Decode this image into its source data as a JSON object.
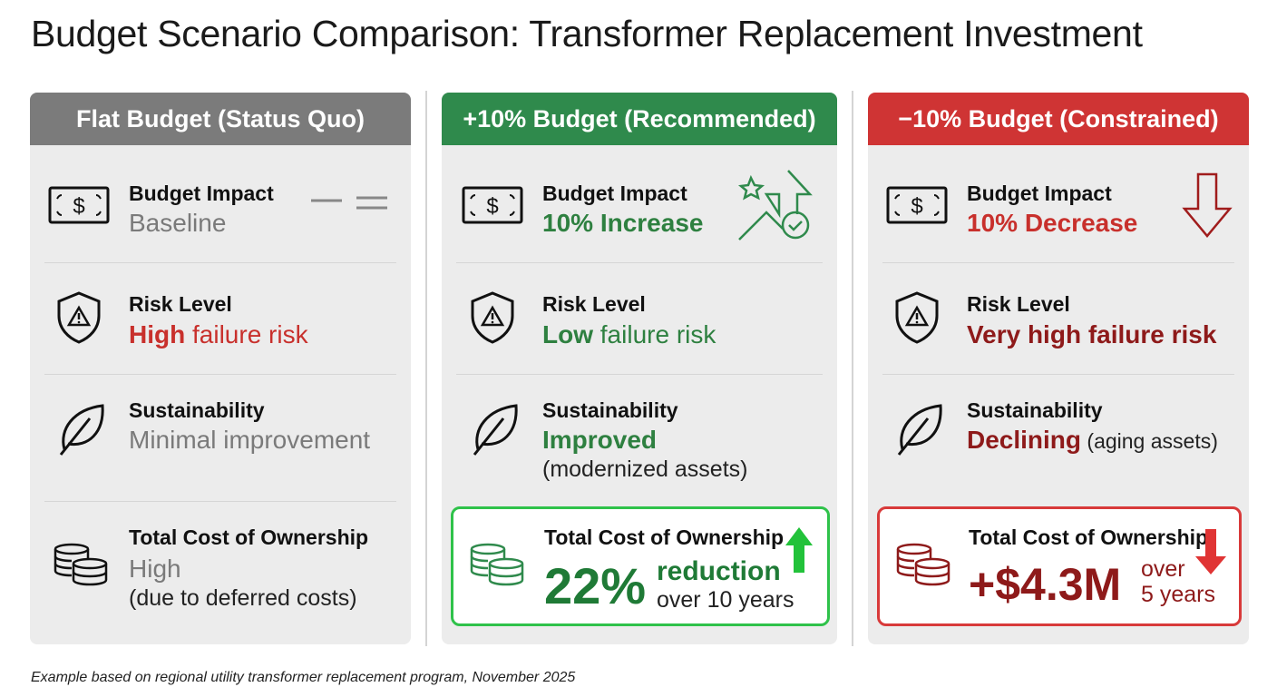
{
  "title": "Budget Scenario Comparison: Transformer Replacement Investment",
  "footnote": "Example based on regional utility transformer replacement program, November 2025",
  "colors": {
    "flat": "#7b7b7b",
    "increase": "#2f8a4c",
    "decrease": "#cf3434",
    "dark_red": "#8e1a1a",
    "card_bg": "#ececec"
  },
  "columns": [
    {
      "header": "Flat Budget (Status Quo)",
      "budget": {
        "label": "Budget Impact",
        "value": "Baseline",
        "indicator_icon": "equals-dashes-icon"
      },
      "risk": {
        "label": "Risk Level",
        "value_strong": "High",
        "value_rest": " failure risk"
      },
      "sustainability": {
        "label": "Sustainability",
        "value": "Minimal improvement",
        "note": ""
      },
      "tco": {
        "label": "Total Cost of Ownership",
        "value": "High",
        "note": "(due to deferred costs)"
      }
    },
    {
      "header": "+10% Budget (Recommended)",
      "budget": {
        "label": "Budget Impact",
        "value": "10% Increase",
        "indicator_icon": "star-arrow-up-check-icon"
      },
      "risk": {
        "label": "Risk Level",
        "value_strong": "Low",
        "value_rest": " failure risk"
      },
      "sustainability": {
        "label": "Sustainability",
        "value": "Improved",
        "note": "(modernized assets)"
      },
      "tco": {
        "label": "Total Cost of Ownership",
        "value": "22%",
        "value_word": "reduction",
        "note": "over 10 years",
        "indicator_icon": "arrow-up-icon"
      }
    },
    {
      "header": "−10% Budget (Constrained)",
      "budget": {
        "label": "Budget Impact",
        "value": "10% Decrease",
        "indicator_icon": "arrow-down-outline-icon"
      },
      "risk": {
        "label": "Risk Level",
        "value_strong": "Very high failure risk",
        "value_rest": ""
      },
      "sustainability": {
        "label": "Sustainability",
        "value": "Declining",
        "note": " (aging assets)"
      },
      "tco": {
        "label": "Total Cost of Ownership",
        "value": "+$4.3M",
        "value_word": "over",
        "note": "5 years",
        "indicator_icon": "arrow-down-icon"
      }
    }
  ]
}
